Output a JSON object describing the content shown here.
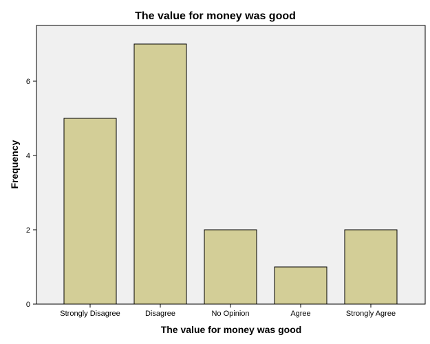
{
  "chart_data": {
    "type": "bar",
    "title": "The value for money was good",
    "xlabel": "The value for money was good",
    "ylabel": "Frequency",
    "categories": [
      "Strongly Disagree",
      "Disagree",
      "No Opinion",
      "Agree",
      "Strongly Agree"
    ],
    "values": [
      5,
      7,
      2,
      1,
      2
    ],
    "ylim": [
      0,
      7.5
    ],
    "yticks": [
      0,
      2,
      4,
      6
    ],
    "grid": false,
    "colors": {
      "bar_fill": "#d3ce97",
      "bar_stroke": "#000000",
      "plot_background": "#f0f0f0",
      "page_background": "#ffffff"
    }
  }
}
